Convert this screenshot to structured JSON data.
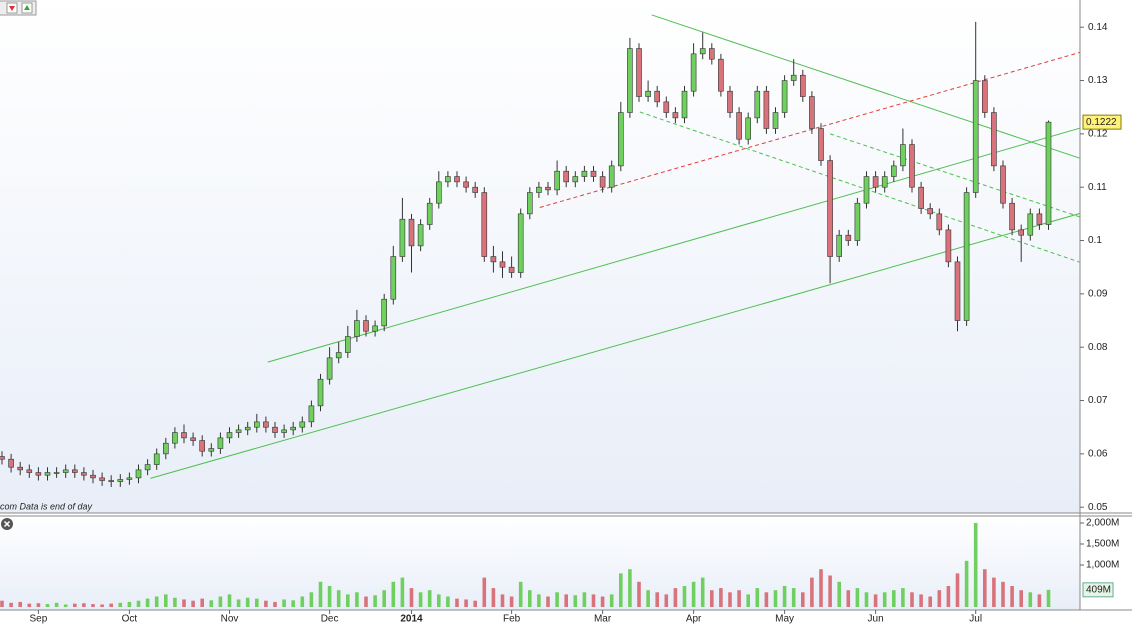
{
  "chart_data": {
    "type": "candlestick",
    "categories": [
      null,
      null,
      null,
      null,
      "Sep",
      null,
      null,
      null,
      null,
      null,
      null,
      null,
      null,
      null,
      "Oct",
      null,
      null,
      null,
      null,
      null,
      null,
      null,
      null,
      null,
      null,
      "Nov",
      null,
      null,
      null,
      null,
      null,
      null,
      null,
      null,
      null,
      null,
      "Dec",
      null,
      null,
      null,
      null,
      null,
      null,
      null,
      null,
      "2014",
      null,
      null,
      null,
      null,
      null,
      null,
      null,
      null,
      null,
      null,
      "Feb",
      null,
      null,
      null,
      null,
      null,
      null,
      null,
      null,
      null,
      "Mar",
      null,
      null,
      null,
      null,
      null,
      null,
      null,
      null,
      null,
      "Apr",
      null,
      null,
      null,
      null,
      null,
      null,
      null,
      null,
      null,
      "May",
      null,
      null,
      null,
      null,
      null,
      null,
      null,
      null,
      null,
      "Jun",
      null,
      null,
      null,
      null,
      null,
      null,
      null,
      null,
      null,
      null,
      "Jul",
      null,
      null,
      null,
      null,
      null,
      null,
      null,
      null
    ],
    "open": [
      0.0595,
      0.059,
      0.0575,
      0.057,
      0.0565,
      0.056,
      0.0565,
      0.0565,
      0.057,
      0.0565,
      0.056,
      0.0555,
      0.055,
      0.0548,
      0.0552,
      0.0555,
      0.057,
      0.058,
      0.06,
      0.062,
      0.064,
      0.063,
      0.0625,
      0.0605,
      0.061,
      0.063,
      0.064,
      0.0645,
      0.065,
      0.066,
      0.065,
      0.064,
      0.0645,
      0.065,
      0.066,
      0.069,
      0.074,
      0.078,
      0.079,
      0.082,
      0.085,
      0.083,
      0.084,
      0.089,
      0.097,
      0.104,
      0.099,
      0.103,
      0.107,
      0.111,
      0.112,
      0.111,
      0.11,
      0.109,
      0.097,
      0.096,
      0.095,
      0.094,
      0.105,
      0.109,
      0.11,
      0.1095,
      0.113,
      0.111,
      0.112,
      0.113,
      0.112,
      0.11,
      0.114,
      0.124,
      0.136,
      0.127,
      0.128,
      0.126,
      0.124,
      0.123,
      0.128,
      0.135,
      0.136,
      0.134,
      0.128,
      0.124,
      0.119,
      0.123,
      0.128,
      0.121,
      0.124,
      0.13,
      0.131,
      0.127,
      0.121,
      0.115,
      0.097,
      0.101,
      0.1,
      0.107,
      0.112,
      0.11,
      0.112,
      0.114,
      0.118,
      0.11,
      0.106,
      0.105,
      0.102,
      0.096,
      0.085,
      0.109,
      0.13,
      0.124,
      0.114,
      0.107,
      0.102,
      0.101,
      0.105,
      0.103
    ],
    "high": [
      0.0605,
      0.06,
      0.0585,
      0.058,
      0.0575,
      0.0575,
      0.0575,
      0.058,
      0.058,
      0.0575,
      0.057,
      0.0565,
      0.056,
      0.0562,
      0.0565,
      0.058,
      0.059,
      0.061,
      0.063,
      0.065,
      0.0655,
      0.064,
      0.0635,
      0.062,
      0.064,
      0.065,
      0.0655,
      0.066,
      0.0675,
      0.067,
      0.066,
      0.0655,
      0.066,
      0.067,
      0.07,
      0.075,
      0.08,
      0.081,
      0.084,
      0.087,
      0.086,
      0.085,
      0.09,
      0.099,
      0.108,
      0.105,
      0.104,
      0.108,
      0.113,
      0.113,
      0.113,
      0.112,
      0.111,
      0.11,
      0.099,
      0.098,
      0.097,
      0.106,
      0.11,
      0.111,
      0.111,
      0.115,
      0.114,
      0.113,
      0.114,
      0.114,
      0.113,
      0.115,
      0.126,
      0.138,
      0.137,
      0.13,
      0.129,
      0.127,
      0.125,
      0.129,
      0.137,
      0.139,
      0.137,
      0.135,
      0.129,
      0.125,
      0.124,
      0.129,
      0.129,
      0.125,
      0.131,
      0.134,
      0.132,
      0.128,
      0.122,
      0.116,
      0.102,
      0.102,
      0.108,
      0.113,
      0.113,
      0.113,
      0.115,
      0.121,
      0.119,
      0.111,
      0.107,
      0.106,
      0.103,
      0.097,
      0.11,
      0.141,
      0.131,
      0.125,
      0.115,
      0.108,
      0.103,
      0.106,
      0.106,
      0.1225
    ],
    "low": [
      0.058,
      0.0565,
      0.056,
      0.0555,
      0.055,
      0.055,
      0.0555,
      0.0555,
      0.0555,
      0.055,
      0.0545,
      0.054,
      0.0538,
      0.0538,
      0.0542,
      0.0545,
      0.056,
      0.057,
      0.059,
      0.061,
      0.062,
      0.0615,
      0.0595,
      0.0595,
      0.06,
      0.062,
      0.063,
      0.0635,
      0.064,
      0.064,
      0.063,
      0.063,
      0.0635,
      0.064,
      0.065,
      0.068,
      0.073,
      0.077,
      0.078,
      0.081,
      0.082,
      0.082,
      0.083,
      0.088,
      0.096,
      0.094,
      0.098,
      0.102,
      0.106,
      0.11,
      0.11,
      0.109,
      0.108,
      0.096,
      0.094,
      0.093,
      0.093,
      0.093,
      0.104,
      0.108,
      0.1085,
      0.1085,
      0.11,
      0.11,
      0.111,
      0.111,
      0.109,
      0.109,
      0.113,
      0.123,
      0.126,
      0.126,
      0.125,
      0.123,
      0.122,
      0.122,
      0.127,
      0.134,
      0.133,
      0.127,
      0.123,
      0.118,
      0.118,
      0.122,
      0.12,
      0.12,
      0.123,
      0.129,
      0.126,
      0.12,
      0.114,
      0.092,
      0.096,
      0.099,
      0.099,
      0.106,
      0.109,
      0.109,
      0.111,
      0.113,
      0.109,
      0.105,
      0.104,
      0.101,
      0.095,
      0.083,
      0.084,
      0.108,
      0.123,
      0.113,
      0.106,
      0.101,
      0.096,
      0.1,
      0.102,
      0.102
    ],
    "close": [
      0.059,
      0.0575,
      0.057,
      0.0565,
      0.056,
      0.0565,
      0.0565,
      0.057,
      0.0565,
      0.056,
      0.0555,
      0.055,
      0.0548,
      0.0552,
      0.0555,
      0.057,
      0.058,
      0.06,
      0.062,
      0.064,
      0.063,
      0.0625,
      0.0605,
      0.061,
      0.063,
      0.064,
      0.0645,
      0.065,
      0.066,
      0.065,
      0.064,
      0.0645,
      0.065,
      0.066,
      0.069,
      0.074,
      0.078,
      0.079,
      0.082,
      0.085,
      0.083,
      0.084,
      0.089,
      0.097,
      0.104,
      0.099,
      0.103,
      0.107,
      0.111,
      0.112,
      0.111,
      0.11,
      0.109,
      0.097,
      0.096,
      0.095,
      0.094,
      0.105,
      0.109,
      0.11,
      0.1095,
      0.113,
      0.111,
      0.112,
      0.113,
      0.112,
      0.11,
      0.114,
      0.124,
      0.136,
      0.127,
      0.128,
      0.126,
      0.124,
      0.123,
      0.128,
      0.135,
      0.136,
      0.134,
      0.128,
      0.124,
      0.119,
      0.123,
      0.128,
      0.121,
      0.124,
      0.13,
      0.131,
      0.127,
      0.121,
      0.115,
      0.097,
      0.101,
      0.1,
      0.107,
      0.112,
      0.11,
      0.112,
      0.114,
      0.118,
      0.11,
      0.106,
      0.105,
      0.102,
      0.096,
      0.085,
      0.109,
      0.13,
      0.124,
      0.114,
      0.107,
      0.102,
      0.101,
      0.105,
      0.103,
      0.1222
    ],
    "up_color": "#6fcf5f",
    "down_color": "#d9737b",
    "ylim": [
      0.0491,
      0.1451
    ],
    "yticks": [
      0.05,
      0.06,
      0.07,
      0.08,
      0.09,
      0.1,
      0.11,
      0.12,
      0.13,
      0.14
    ],
    "trendlines": [
      {
        "color": "#4fbf4f",
        "dashed": false,
        "points": [
          [
            29.2,
            0.0772
          ],
          [
            118.5,
            0.1211
          ]
        ]
      },
      {
        "color": "#4fbf4f",
        "dashed": false,
        "points": [
          [
            16.3,
            0.0554
          ],
          [
            118.5,
            0.1051
          ]
        ]
      },
      {
        "color": "#4fbf4f",
        "dashed": false,
        "points": [
          [
            71.4,
            0.1423
          ],
          [
            118.5,
            0.1154
          ]
        ]
      },
      {
        "color": "#4fbf4f",
        "dashed": true,
        "points": [
          [
            70.1,
            0.1241
          ],
          [
            118.5,
            0.0959
          ]
        ]
      },
      {
        "color": "#4fbf4f",
        "dashed": true,
        "points": [
          [
            91.0,
            0.12
          ],
          [
            118.5,
            0.1044
          ]
        ]
      },
      {
        "color": "#e03c3c",
        "dashed": true,
        "points": [
          [
            59.1,
            0.1062
          ],
          [
            118.5,
            0.1353
          ]
        ]
      }
    ],
    "footnote": "com  Data is end of day",
    "volume": {
      "values": [
        150,
        100,
        120,
        80,
        90,
        70,
        100,
        60,
        80,
        90,
        70,
        60,
        80,
        100,
        120,
        150,
        200,
        250,
        300,
        220,
        180,
        150,
        200,
        160,
        250,
        300,
        180,
        220,
        200,
        150,
        120,
        180,
        160,
        250,
        350,
        600,
        500,
        400,
        300,
        350,
        250,
        280,
        400,
        600,
        700,
        450,
        350,
        400,
        300,
        250,
        200,
        180,
        150,
        700,
        450,
        300,
        250,
        600,
        400,
        300,
        250,
        350,
        300,
        280,
        350,
        300,
        250,
        300,
        800,
        900,
        600,
        400,
        350,
        300,
        450,
        500,
        600,
        700,
        400,
        450,
        350,
        400,
        300,
        450,
        350,
        400,
        500,
        450,
        350,
        700,
        900,
        750,
        600,
        400,
        450,
        350,
        300,
        350,
        400,
        450,
        350,
        300,
        250,
        400,
        500,
        800,
        1100,
        2000,
        900,
        700,
        600,
        500,
        400,
        350,
        300,
        409
      ],
      "last_label": "409M",
      "ylim": [
        0,
        2143
      ],
      "yticks": [
        {
          "value": 1000,
          "label": "1,000M"
        },
        {
          "value": 1500,
          "label": "1,500M"
        },
        {
          "value": 2000,
          "label": "2,000M"
        }
      ]
    }
  }
}
